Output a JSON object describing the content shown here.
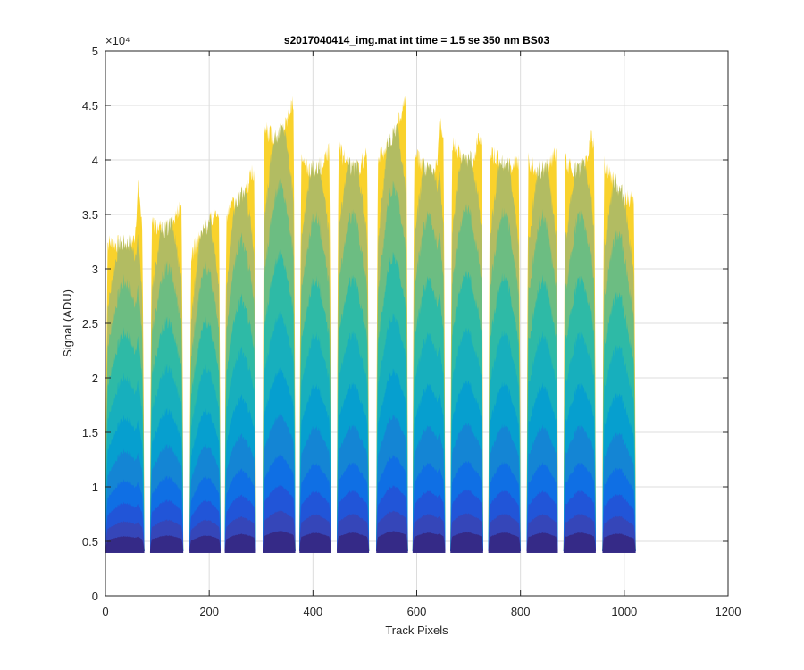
{
  "chart_data": {
    "type": "area",
    "title": "s2017040414_img.mat int time = 1.5 se  350 nm BS03",
    "xlabel": "Track Pixels",
    "ylabel": "Signal (ADU)",
    "xlim": [
      0,
      1200
    ],
    "ylim": [
      0,
      50000
    ],
    "xticks": [
      0,
      200,
      400,
      600,
      800,
      1000,
      1200
    ],
    "yticks": [
      0,
      5000,
      10000,
      15000,
      20000,
      25000,
      30000,
      35000,
      40000,
      45000,
      50000
    ],
    "xtick_labels": [
      "0",
      "200",
      "400",
      "600",
      "800",
      "1000",
      "1200"
    ],
    "ytick_labels": [
      "0",
      "0.5",
      "1",
      "1.5",
      "2",
      "2.5",
      "3",
      "3.5",
      "4",
      "4.5",
      "5"
    ],
    "y_exponent_label": "×10⁴",
    "grid": true,
    "baseline": 4100,
    "colormap": [
      "#352a87",
      "#3546b9",
      "#2155d8",
      "#0f6fe4",
      "#1485d4",
      "#069fcf",
      "#17afbd",
      "#2ebaa6",
      "#6cbd82",
      "#b2bc62",
      "#e6b93c",
      "#f9d22c"
    ],
    "bands_x": [
      [
        0,
        75
      ],
      [
        86,
        150
      ],
      [
        162,
        222
      ],
      [
        230,
        290
      ],
      [
        303,
        366
      ],
      [
        374,
        435
      ],
      [
        446,
        508
      ],
      [
        522,
        583
      ],
      [
        592,
        655
      ],
      [
        665,
        728
      ],
      [
        738,
        800
      ],
      [
        812,
        872
      ],
      [
        883,
        945
      ],
      [
        958,
        1022
      ]
    ],
    "band_peaks": [
      37700,
      36600,
      36000,
      39500,
      46000,
      41500,
      42000,
      46200,
      44500,
      43500,
      41300,
      40800,
      43200,
      40500
    ],
    "band_left_levels": [
      32500,
      34500,
      31000,
      35000,
      43000,
      40000,
      41500,
      40000,
      41000,
      42000,
      41000,
      40000,
      40000,
      40000
    ],
    "band_right_levels": [
      33000,
      36500,
      35500,
      39000,
      45500,
      41000,
      40500,
      46000,
      41000,
      41500,
      40000,
      41000,
      42000,
      35500
    ],
    "band_mins": [
      32000,
      32500,
      31500,
      34500,
      41000,
      38500,
      38500,
      39000,
      39000,
      39500,
      39000,
      38500,
      38000,
      35000
    ],
    "layer_fractions": [
      0.04,
      0.08,
      0.13,
      0.19,
      0.27,
      0.36,
      0.47,
      0.59,
      0.73,
      0.87,
      1.0
    ]
  }
}
